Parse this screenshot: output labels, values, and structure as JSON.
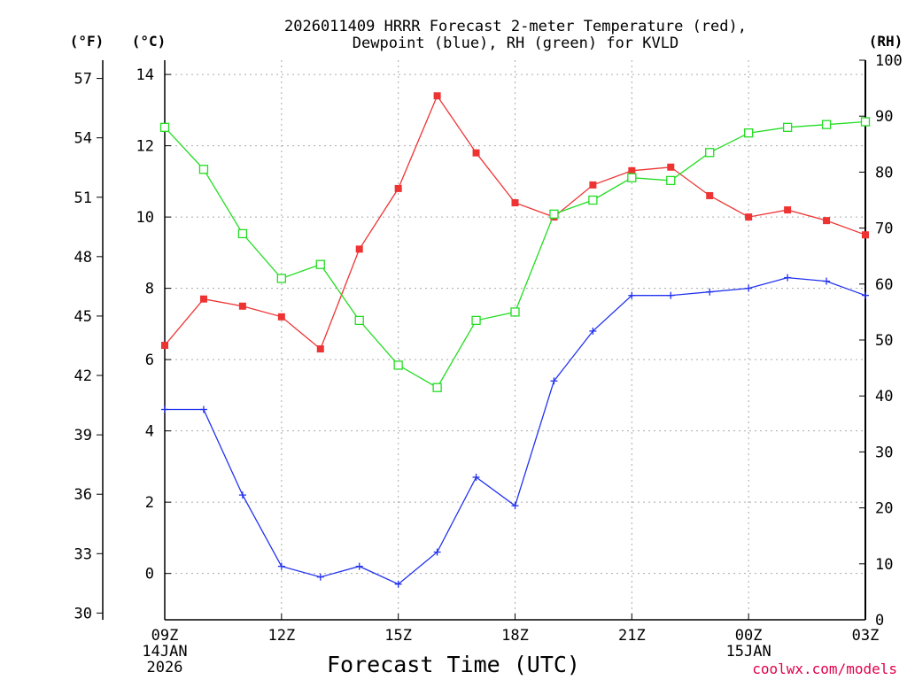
{
  "chart_data": {
    "type": "line",
    "title": [
      "2026011409 HRRR Forecast 2-meter Temperature (red),",
      "Dewpoint (blue), RH (green) for KVLD"
    ],
    "xlabel": "Forecast Time (UTC)",
    "x_ticks": [
      {
        "hour": 0,
        "lines": [
          "09Z",
          "14JAN",
          "2026"
        ]
      },
      {
        "hour": 3,
        "lines": [
          "12Z"
        ]
      },
      {
        "hour": 6,
        "lines": [
          "15Z"
        ]
      },
      {
        "hour": 9,
        "lines": [
          "18Z"
        ]
      },
      {
        "hour": 12,
        "lines": [
          "21Z"
        ]
      },
      {
        "hour": 15,
        "lines": [
          "00Z",
          "15JAN"
        ]
      },
      {
        "hour": 18,
        "lines": [
          "03Z"
        ]
      }
    ],
    "x_range": [
      0,
      18
    ],
    "left_axis_c": {
      "label": "(°C)",
      "ticks": [
        "0",
        "2",
        "4",
        "6",
        "8",
        "10",
        "12",
        "14"
      ],
      "range": [
        -1.3,
        14.4
      ]
    },
    "left_axis_f": {
      "label": "(°F)",
      "ticks": [
        "30",
        "33",
        "36",
        "39",
        "42",
        "45",
        "48",
        "51",
        "54",
        "57"
      ]
    },
    "right_axis_rh": {
      "label": "(RH)",
      "ticks": [
        "0",
        "10",
        "20",
        "30",
        "40",
        "50",
        "60",
        "70",
        "80",
        "90",
        "100"
      ],
      "range": [
        0,
        100
      ]
    },
    "series": [
      {
        "name": "Temperature",
        "unit": "C",
        "color": "#ee3333",
        "marker": "filled-square",
        "values": [
          6.4,
          7.7,
          7.5,
          7.2,
          6.3,
          9.1,
          10.8,
          13.4,
          11.8,
          10.4,
          10.0,
          10.9,
          11.3,
          11.4,
          10.6,
          10.0,
          10.2,
          9.9,
          9.5
        ]
      },
      {
        "name": "Dewpoint",
        "unit": "C",
        "color": "#2233ee",
        "marker": "plus",
        "values": [
          4.6,
          4.6,
          2.2,
          0.2,
          -0.1,
          0.2,
          -0.3,
          0.6,
          2.7,
          1.9,
          5.4,
          6.8,
          7.8,
          7.8,
          7.9,
          8.0,
          8.3,
          8.2,
          7.8
        ]
      },
      {
        "name": "RH",
        "unit": "%",
        "color": "#22dd22",
        "marker": "open-square",
        "values": [
          88,
          80.5,
          69,
          61,
          63.5,
          53.5,
          45.5,
          41.5,
          53.5,
          55,
          72.5,
          75,
          79,
          78.5,
          83.5,
          87,
          88,
          88.5,
          89
        ]
      }
    ]
  },
  "watermark": "coolwx.com/models"
}
